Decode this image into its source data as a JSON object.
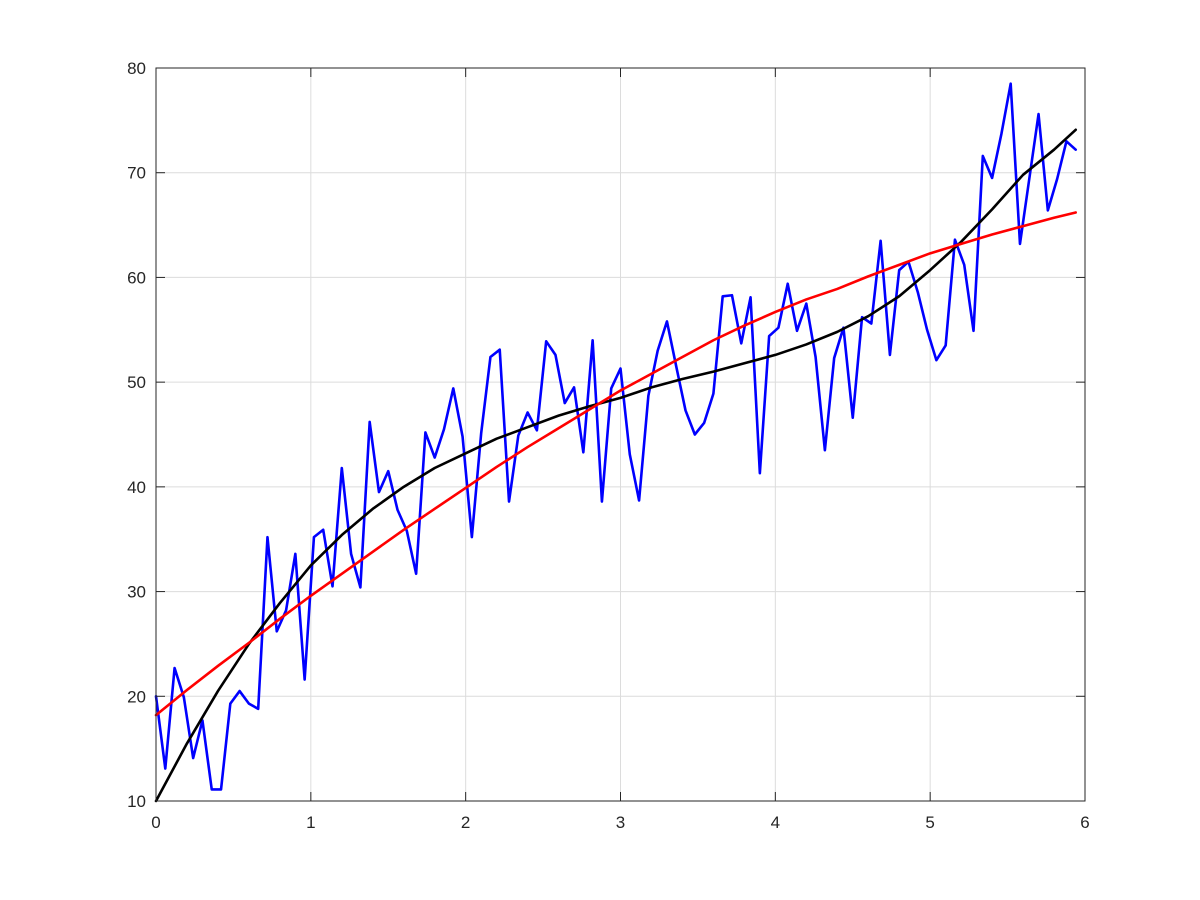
{
  "chart_data": {
    "type": "line",
    "title": "",
    "xlabel": "",
    "ylabel": "",
    "xlim": [
      0,
      6
    ],
    "ylim": [
      10,
      80
    ],
    "grid": true,
    "xticks": [
      0,
      1,
      2,
      3,
      4,
      5,
      6
    ],
    "yticks": [
      10,
      20,
      30,
      40,
      50,
      60,
      70,
      80
    ],
    "xtick_labels": [
      "0",
      "1",
      "2",
      "3",
      "4",
      "5",
      "6"
    ],
    "ytick_labels": [
      "10",
      "20",
      "30",
      "40",
      "50",
      "60",
      "70",
      "80"
    ],
    "series": [
      {
        "color": "#0000ff",
        "x": [
          0,
          0.06,
          0.12,
          0.18,
          0.24,
          0.3,
          0.36,
          0.42,
          0.48,
          0.54,
          0.6,
          0.66,
          0.72,
          0.78,
          0.84,
          0.9,
          0.96,
          1.02,
          1.08,
          1.14,
          1.2,
          1.26,
          1.32,
          1.38,
          1.44,
          1.5,
          1.56,
          1.62,
          1.68,
          1.74,
          1.8,
          1.86,
          1.92,
          1.98,
          2.04,
          2.1,
          2.16,
          2.22,
          2.28,
          2.34,
          2.4,
          2.46,
          2.52,
          2.58,
          2.64,
          2.7,
          2.76,
          2.82,
          2.88,
          2.94,
          3.0,
          3.06,
          3.12,
          3.18,
          3.24,
          3.3,
          3.36,
          3.42,
          3.48,
          3.54,
          3.6,
          3.66,
          3.72,
          3.78,
          3.84,
          3.9,
          3.96,
          4.02,
          4.08,
          4.14,
          4.2,
          4.26,
          4.32,
          4.38,
          4.44,
          4.5,
          4.56,
          4.62,
          4.68,
          4.74,
          4.8,
          4.86,
          4.92,
          4.98,
          5.04,
          5.1,
          5.16,
          5.22,
          5.28,
          5.34,
          5.4,
          5.46,
          5.52,
          5.58,
          5.64,
          5.7,
          5.76,
          5.82,
          5.88,
          5.94
        ],
        "y": [
          20.0,
          13.1,
          22.7,
          19.9,
          14.1,
          17.7,
          11.1,
          11.1,
          19.3,
          20.5,
          19.3,
          18.8,
          35.2,
          26.2,
          28.2,
          33.6,
          21.6,
          35.2,
          35.9,
          30.5,
          41.8,
          33.6,
          30.4,
          46.2,
          39.5,
          41.5,
          37.8,
          35.8,
          31.7,
          45.2,
          42.8,
          45.5,
          49.4,
          44.8,
          35.2,
          45.1,
          52.4,
          53.1,
          38.6,
          44.9,
          47.1,
          45.4,
          53.9,
          52.6,
          48.0,
          49.5,
          43.3,
          54.0,
          38.6,
          49.4,
          51.3,
          43.1,
          38.7,
          48.7,
          53.0,
          55.8,
          51.5,
          47.3,
          45.0,
          46.1,
          48.9,
          58.2,
          58.3,
          53.7,
          58.1,
          41.3,
          54.4,
          55.2,
          59.4,
          54.9,
          57.5,
          52.4,
          43.5,
          52.3,
          55.2,
          46.6,
          56.2,
          55.6,
          63.5,
          52.6,
          60.7,
          61.5,
          58.6,
          55.0,
          52.1,
          53.5,
          63.6,
          61.2,
          54.9,
          71.6,
          69.5,
          73.7,
          78.5,
          63.2,
          69.4,
          75.6,
          66.4,
          69.4,
          73.0,
          72.2
        ]
      },
      {
        "color": "#000000",
        "x": [
          0,
          0.2,
          0.4,
          0.6,
          0.8,
          1.0,
          1.2,
          1.4,
          1.6,
          1.8,
          2.0,
          2.2,
          2.4,
          2.6,
          2.8,
          3.0,
          3.2,
          3.4,
          3.6,
          3.8,
          4.0,
          4.2,
          4.4,
          4.6,
          4.8,
          5.0,
          5.2,
          5.4,
          5.6,
          5.8,
          5.94
        ],
        "y": [
          10.0,
          15.5,
          20.5,
          25.0,
          28.9,
          32.5,
          35.4,
          37.9,
          40.0,
          41.8,
          43.2,
          44.6,
          45.7,
          46.8,
          47.7,
          48.5,
          49.5,
          50.3,
          51.0,
          51.8,
          52.6,
          53.6,
          54.8,
          56.3,
          58.2,
          60.7,
          63.4,
          66.5,
          69.8,
          72.2,
          74.1
        ]
      },
      {
        "color": "#ff0000",
        "x": [
          0,
          0.2,
          0.4,
          0.6,
          0.8,
          1.0,
          1.2,
          1.4,
          1.6,
          1.8,
          2.0,
          2.2,
          2.4,
          2.6,
          2.8,
          3.0,
          3.2,
          3.4,
          3.6,
          3.8,
          4.0,
          4.2,
          4.4,
          4.6,
          4.8,
          5.0,
          5.2,
          5.4,
          5.6,
          5.8,
          5.94
        ],
        "y": [
          18.2,
          20.6,
          22.9,
          25.1,
          27.4,
          29.6,
          31.7,
          33.8,
          35.9,
          37.9,
          39.9,
          41.9,
          43.8,
          45.6,
          47.4,
          49.2,
          50.8,
          52.4,
          54.0,
          55.4,
          56.7,
          57.9,
          58.9,
          60.1,
          61.2,
          62.3,
          63.2,
          64.1,
          64.9,
          65.7,
          66.2
        ]
      }
    ]
  }
}
